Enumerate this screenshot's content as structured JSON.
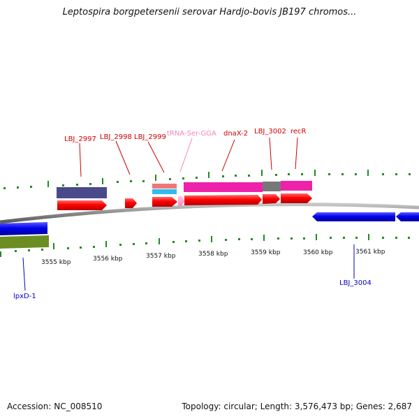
{
  "title": "Leptospira borgpetersenii serovar Hardjo-bovis JB197 chromos...",
  "footer": {
    "accession": "Accession: NC_008510",
    "topology": "Topology: circular; Length: 3,576,473 bp; Genes: 2,687"
  },
  "colors": {
    "cds": "#ff0000",
    "trna": "#ff99cc",
    "reverse_cds": "#0000ee",
    "label_forward": "#cc0000",
    "label_trna": "#ee88bb",
    "label_reverse": "#0000cc",
    "backbone": "#888888",
    "ticks": "#228b22",
    "navy": "#4a4a8a",
    "salmon": "#ee7777",
    "cyan": "#33bbee",
    "magenta": "#ee22aa",
    "gray": "#777777",
    "olive": "#6b8e23"
  },
  "scale_labels": [
    "3555 kbp",
    "3556 kbp",
    "3557 kbp",
    "3558 kbp",
    "3559 kbp",
    "3560 kbp",
    "3561 kbp"
  ],
  "gene_labels": {
    "forward": [
      "LBJ_2997",
      "LBJ_2998",
      "LBJ_2999",
      "tRNA-Ser-GGA",
      "dnaX-2",
      "LBJ_3002",
      "recR"
    ],
    "reverse": [
      "lpxD-1",
      "LBJ_3004"
    ]
  }
}
